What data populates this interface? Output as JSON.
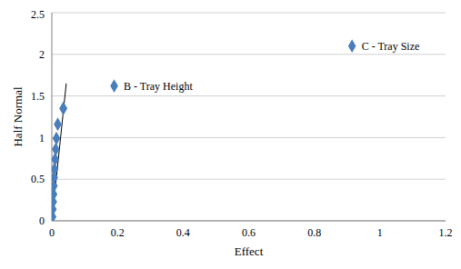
{
  "chart_data": {
    "type": "scatter",
    "x_label": "Effect",
    "y_label": "Half Normal",
    "x": [
      0.002,
      0.003,
      0.004,
      0.005,
      0.006,
      0.007,
      0.008,
      0.01,
      0.012,
      0.014,
      0.018,
      0.035,
      0.035,
      0.19,
      0.915
    ],
    "y": [
      0.05,
      0.14,
      0.23,
      0.32,
      0.42,
      0.52,
      0.62,
      0.74,
      0.86,
      0.99,
      1.16,
      1.35,
      1.35,
      1.62,
      2.1
    ],
    "point_labels": [
      null,
      null,
      null,
      null,
      null,
      null,
      null,
      null,
      null,
      null,
      null,
      null,
      null,
      "B - Tray Height",
      "C - Tray Size"
    ],
    "color": "#4a7ebb",
    "marker": "diamond",
    "xlim": [
      0,
      1.2
    ],
    "xticks": [
      0,
      0.2,
      0.4,
      0.6,
      0.8,
      1,
      1.2
    ],
    "ylim": [
      0,
      2.5
    ],
    "yticks": [
      0,
      0.5,
      1,
      1.5,
      2,
      2.5
    ],
    "grid": true,
    "reference_line": {
      "x": [
        0,
        0.044
      ],
      "y": [
        0,
        1.65
      ],
      "color": "#000000"
    }
  }
}
